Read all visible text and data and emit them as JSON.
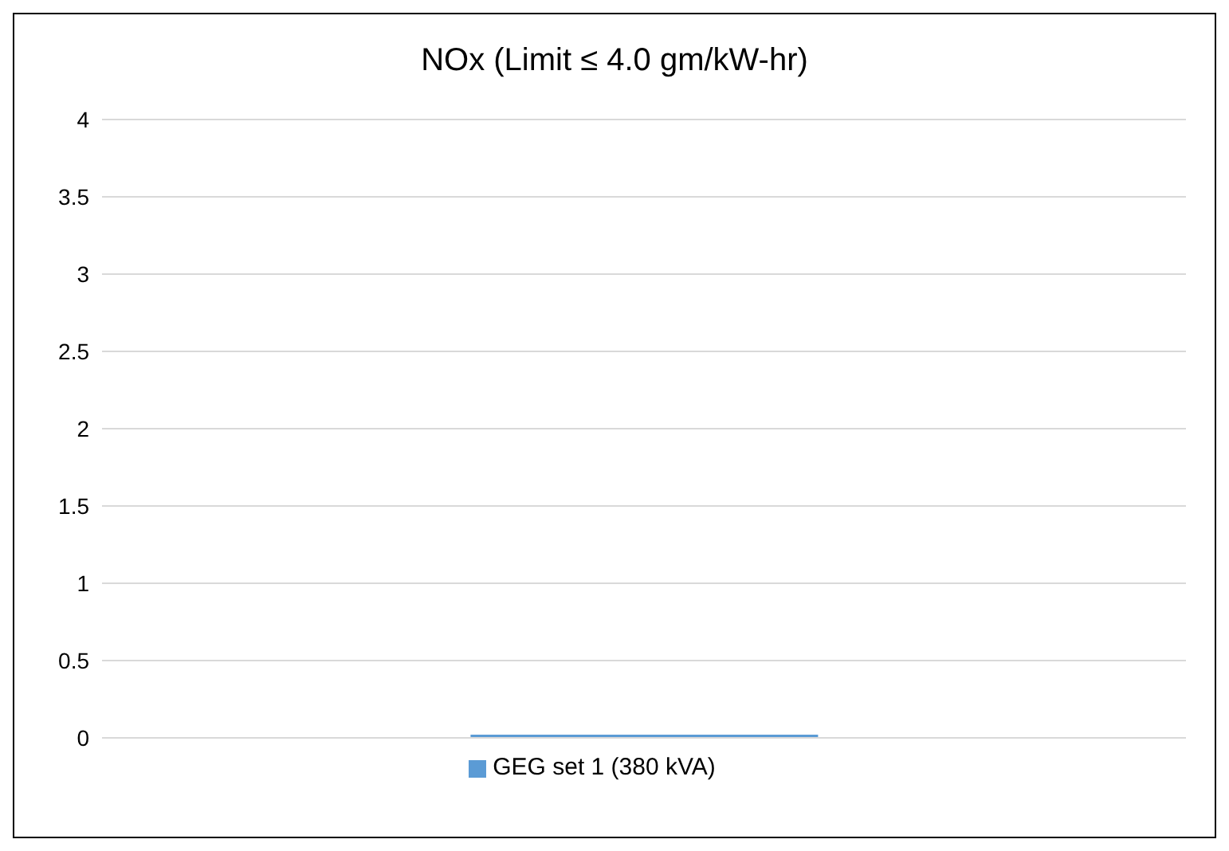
{
  "chart_data": {
    "type": "bar",
    "title": "NOx (Limit ≤ 4.0 gm/kW-hr)",
    "categories": [
      null
    ],
    "series": [
      {
        "name": "GEG set 1 (380 kVA)",
        "color": "#5b9bd5",
        "values": [
          0.02
        ]
      }
    ],
    "ylim": [
      0,
      4
    ],
    "yticks": [
      0,
      0.5,
      1,
      1.5,
      2,
      2.5,
      3,
      3.5,
      4
    ],
    "grid": "y",
    "legend": "bottom"
  }
}
